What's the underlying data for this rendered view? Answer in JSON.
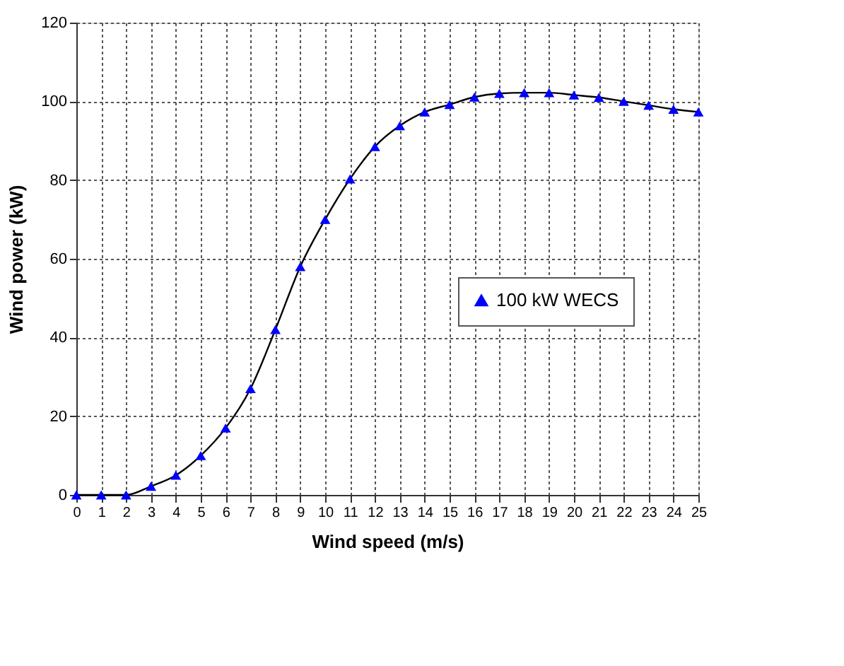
{
  "chart_data": {
    "type": "line",
    "xlabel": "Wind speed (m/s)",
    "ylabel": "Wind power (kW)",
    "x": [
      0,
      1,
      2,
      3,
      4,
      5,
      6,
      7,
      8,
      9,
      10,
      11,
      12,
      13,
      14,
      15,
      16,
      17,
      18,
      19,
      20,
      21,
      22,
      23,
      24,
      25
    ],
    "series": [
      {
        "name": "100 kW WECS",
        "color": "#0000ff",
        "values": [
          0,
          0,
          0,
          2.2,
          5,
          10,
          17,
          27,
          42,
          58,
          70,
          80.3,
          88.5,
          93.8,
          97.3,
          99.2,
          101.1,
          102,
          102.2,
          102.2,
          101.6,
          101,
          100,
          99,
          98,
          97.3
        ]
      }
    ],
    "xlim": [
      0,
      25
    ],
    "xticks": [
      0,
      1,
      2,
      3,
      4,
      5,
      6,
      7,
      8,
      9,
      10,
      11,
      12,
      13,
      14,
      15,
      16,
      17,
      18,
      19,
      20,
      21,
      22,
      23,
      24,
      25
    ],
    "ylim": [
      0,
      120
    ],
    "yticks": [
      0,
      20,
      40,
      60,
      80,
      100,
      120
    ],
    "grid": true,
    "legend": "right",
    "marker": "triangle",
    "line_style": "solid"
  }
}
